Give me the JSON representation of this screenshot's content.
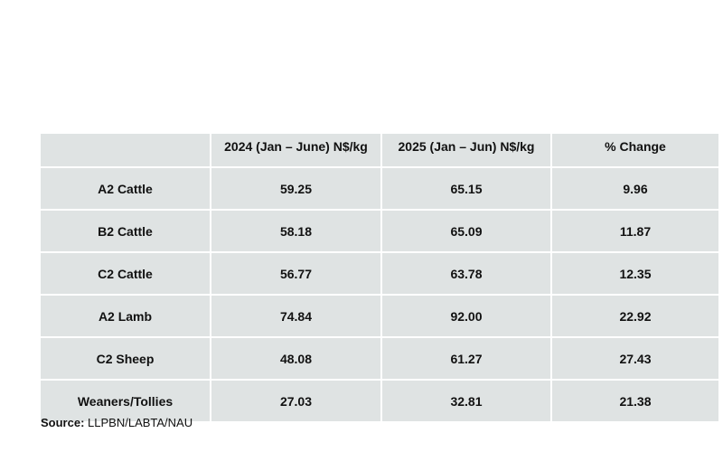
{
  "table": {
    "header": [
      "2024 (Jan – June) N$/kg",
      "2025 (Jan – Jun) N$/kg",
      "% Change"
    ],
    "rows": [
      [
        "A2 Cattle",
        "59.25",
        "65.15",
        "9.96"
      ],
      [
        "B2 Cattle",
        "58.18",
        "65.09",
        "11.87"
      ],
      [
        "C2 Cattle",
        "56.77",
        "63.78",
        "12.35"
      ],
      [
        "A2 Lamb",
        "74.84",
        "92.00",
        "22.92"
      ],
      [
        "C2 Sheep",
        "48.08",
        "61.27",
        "27.43"
      ],
      [
        "Weaners/Tollies",
        "27.03",
        "32.81",
        "21.38"
      ]
    ]
  },
  "source": {
    "label": "Source:",
    "text": "LLPBN/LABTA/NAU"
  }
}
